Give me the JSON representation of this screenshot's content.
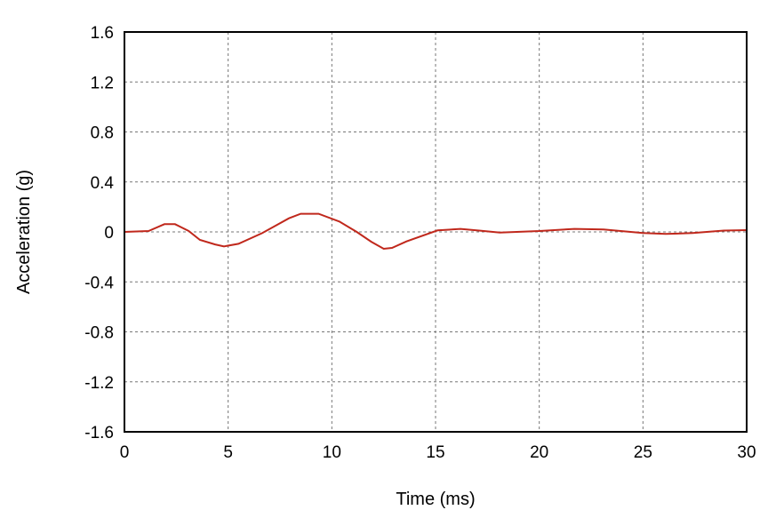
{
  "chart_data": {
    "type": "line",
    "title": "",
    "xlabel": "Time (ms)",
    "ylabel": "Acceleration (g)",
    "xlim": [
      0,
      30
    ],
    "ylim": [
      -1.6,
      1.6
    ],
    "xticks": [
      "0",
      "5",
      "10",
      "15",
      "20",
      "25",
      "30"
    ],
    "yticks": [
      "1.6",
      "1.2",
      "0.8",
      "0.4",
      "0",
      "-0.4",
      "-0.8",
      "-1.2",
      "-1.6"
    ],
    "grid": true,
    "line_color": "#c0281c",
    "series": [
      {
        "x": [
          0,
          1.16,
          1.93,
          2.44,
          3.1,
          3.64,
          4.37,
          4.8,
          5.5,
          6.64,
          7.93,
          8.5,
          9.36,
          10.36,
          11.2,
          11.9,
          12.5,
          12.9,
          13.6,
          15.1,
          16.2,
          17.1,
          18.1,
          20,
          21.7,
          23.1,
          25,
          26.1,
          27.4,
          28.9,
          30
        ],
        "y": [
          0,
          0.007,
          0.062,
          0.062,
          0.007,
          -0.064,
          -0.1,
          -0.116,
          -0.095,
          -0.01,
          0.109,
          0.145,
          0.145,
          0.083,
          0.0,
          -0.079,
          -0.135,
          -0.128,
          -0.076,
          0.012,
          0.024,
          0.011,
          -0.005,
          0.007,
          0.024,
          0.019,
          -0.009,
          -0.016,
          -0.009,
          0.011,
          0.014
        ]
      }
    ]
  }
}
